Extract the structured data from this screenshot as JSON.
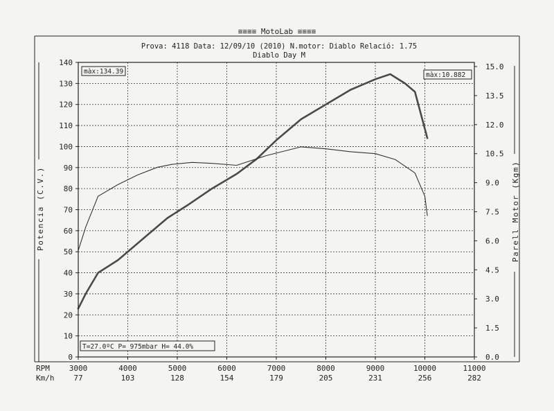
{
  "header": {
    "title": "≡≡≡≡  MotoLab  ≡≡≡≡",
    "info_line": "Prova: 4118  Data: 12/09/10 (2010)  N.motor: Diablo  Relació: 1.75",
    "subtitle": "Diablo Day M"
  },
  "boxes": {
    "power_max": "màx:134.39",
    "torque_max": "màx:10.882",
    "conditions": "T=27.0ºC P=  975mbar H= 44.0%"
  },
  "axis_titles": {
    "left": "Potencia (C.V.)",
    "right": "Parell Motor (Kgm)",
    "rpm_label": "RPM",
    "kmh_label": "Km/h"
  },
  "colors": {
    "paper": "#f4f4f1",
    "ink": "#222222",
    "power_line": "#4a4a4a",
    "torque_line": "#333333"
  },
  "chart_data": {
    "type": "line",
    "x_ticks": [
      "3000",
      "4000",
      "5000",
      "6000",
      "7000",
      "8000",
      "9000",
      "10000",
      "11000"
    ],
    "kmh_ticks": [
      "77",
      "103",
      "128",
      "154",
      "179",
      "205",
      "231",
      "256",
      "282"
    ],
    "left_ticks": [
      "0",
      "10",
      "20",
      "30",
      "40",
      "50",
      "60",
      "70",
      "80",
      "90",
      "100",
      "110",
      "120",
      "130",
      "140"
    ],
    "right_ticks": [
      "0.0",
      "1.5",
      "3.0",
      "4.5",
      "6.0",
      "7.5",
      "9.0",
      "10.5",
      "12.0",
      "13.5",
      "15.0"
    ],
    "xlim": [
      3000,
      11000
    ],
    "ylim_left": [
      0,
      140
    ],
    "ylim_right": [
      0,
      15
    ],
    "grid": true,
    "series": [
      {
        "name": "Potencia",
        "axis": "left",
        "x": [
          3000,
          3150,
          3400,
          3800,
          4300,
          4800,
          5200,
          5700,
          6200,
          6600,
          7000,
          7500,
          8000,
          8500,
          9000,
          9300,
          9600,
          9800,
          10050
        ],
        "y": [
          23,
          30,
          40,
          46,
          56,
          66,
          72,
          80,
          87,
          94,
          103,
          113,
          120,
          127,
          132,
          134.4,
          130,
          126,
          104
        ]
      },
      {
        "name": "Parell Motor",
        "axis": "right",
        "x": [
          3000,
          3150,
          3400,
          3800,
          4200,
          4600,
          4900,
          5300,
          5700,
          6200,
          6800,
          7500,
          8000,
          8500,
          9000,
          9400,
          9800,
          10000,
          10050
        ],
        "y": [
          5.5,
          6.7,
          8.3,
          8.9,
          9.4,
          9.8,
          9.95,
          10.05,
          10.0,
          9.9,
          10.4,
          10.85,
          10.75,
          10.6,
          10.5,
          10.2,
          9.5,
          8.3,
          7.3
        ]
      }
    ]
  }
}
